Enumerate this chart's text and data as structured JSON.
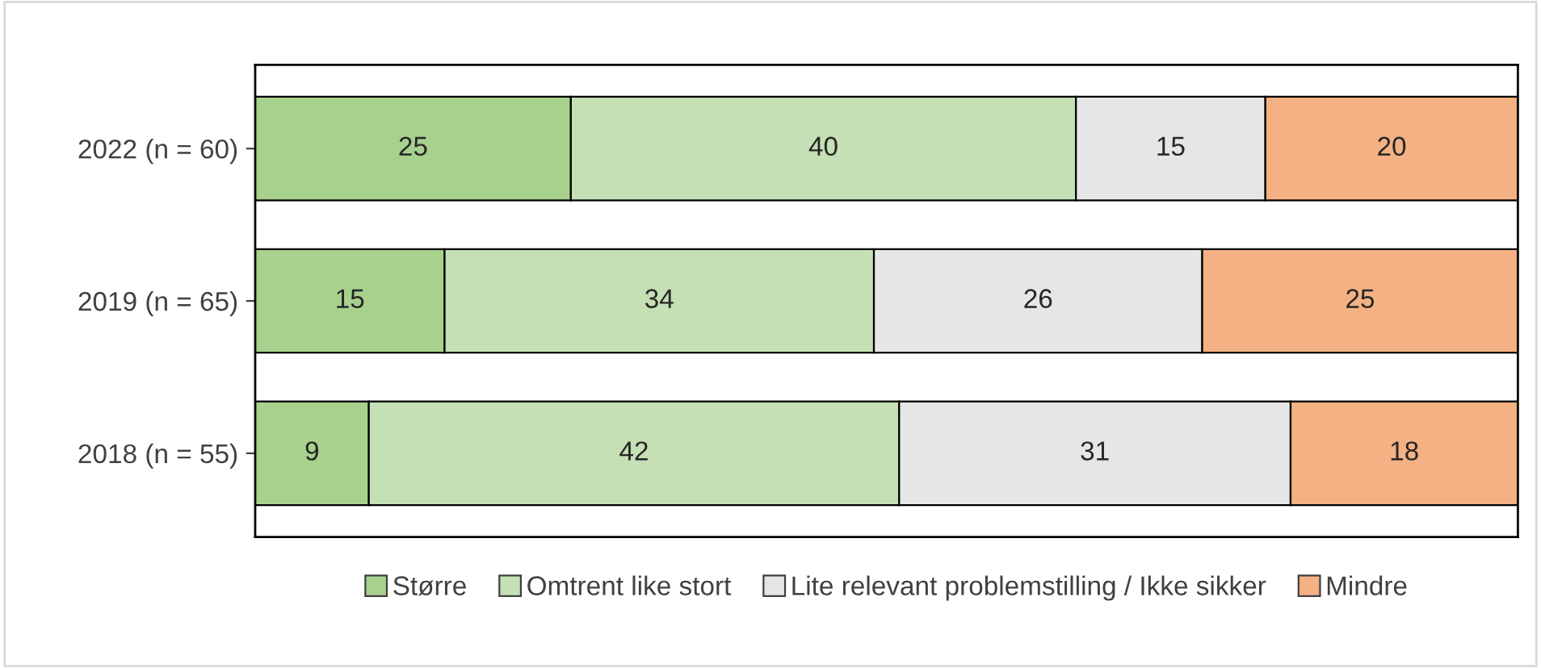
{
  "chart_data": {
    "type": "bar",
    "orientation": "horizontal",
    "stacked": true,
    "categories": [
      "2022 (n = 60)",
      "2019 (n = 65)",
      "2018 (n = 55)"
    ],
    "series": [
      {
        "name": "Større",
        "color": "#a9d18e",
        "values": [
          25,
          15,
          9
        ]
      },
      {
        "name": "Omtrent like stort",
        "color": "#c5e0b4",
        "values": [
          40,
          34,
          42
        ]
      },
      {
        "name": "Lite relevant problemstilling / Ikke sikker",
        "color": "#e7e6e6",
        "values": [
          15,
          26,
          31
        ]
      },
      {
        "name": "Mindre",
        "color": "#f4b183",
        "values": [
          20,
          25,
          18
        ]
      }
    ],
    "xlim": [
      0,
      100
    ],
    "tick_labels": "y",
    "data_labels": true,
    "grid": false,
    "legend": "bottom"
  }
}
